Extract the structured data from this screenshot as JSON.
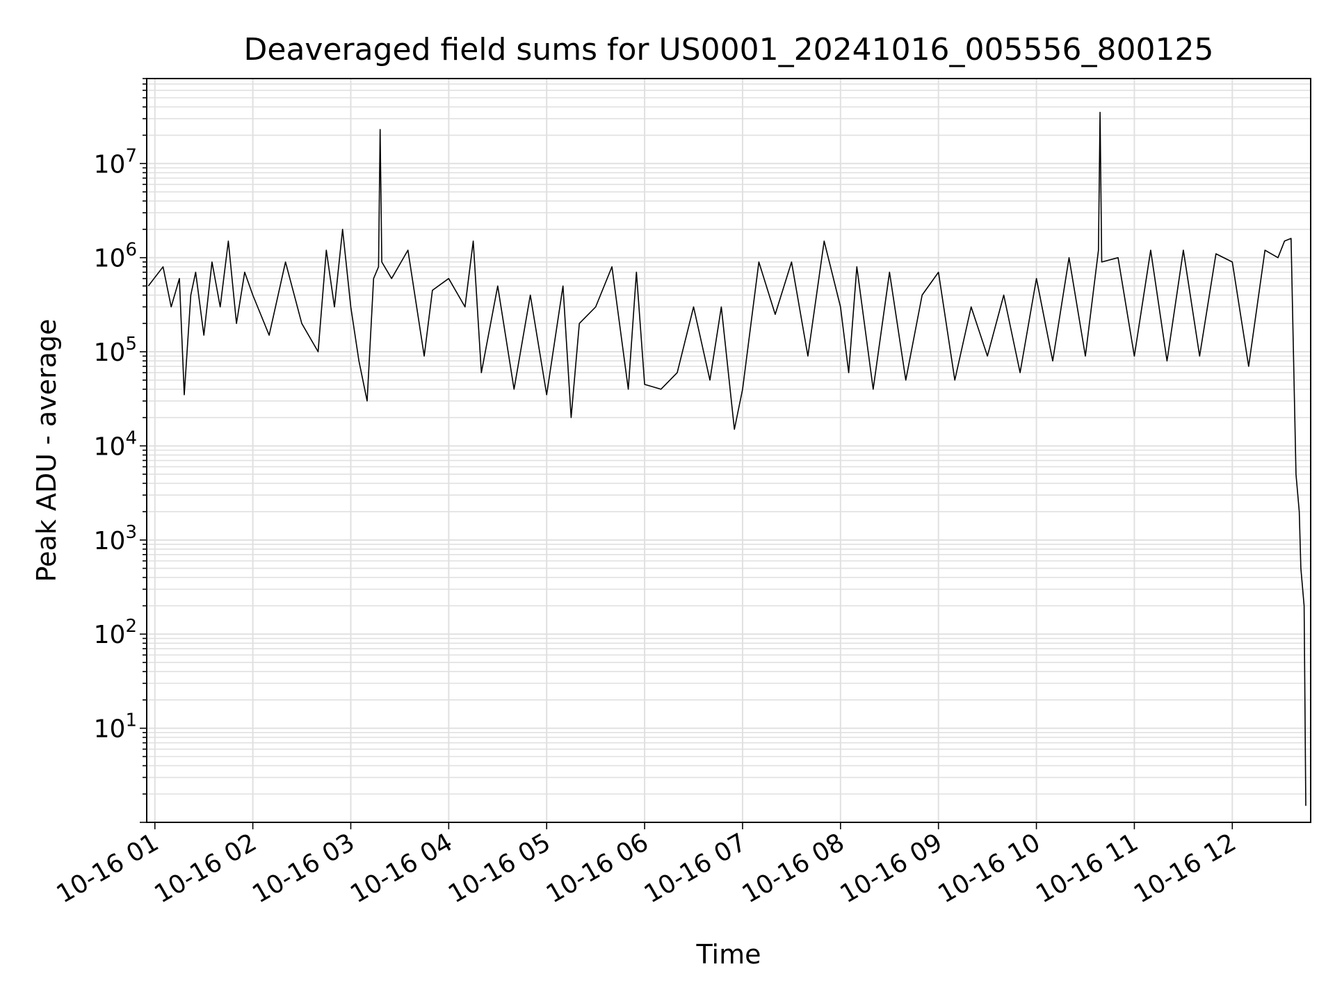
{
  "chart_data": {
    "type": "line",
    "title": "Deaveraged field sums for US0001_20241016_005556_800125",
    "xlabel": "Time",
    "ylabel": "Peak ADU - average",
    "yscale": "log",
    "ylim": [
      1.0,
      80000000
    ],
    "xlim": [
      "2024-10-16 00:55:56",
      "2024-10-16 12:48:00"
    ],
    "grid": true,
    "line_color": "#000000",
    "grid_color": "#e0e0e0",
    "x_ticks": [
      {
        "label": "10-16 01",
        "value": "2024-10-16 01:00"
      },
      {
        "label": "10-16 02",
        "value": "2024-10-16 02:00"
      },
      {
        "label": "10-16 03",
        "value": "2024-10-16 03:00"
      },
      {
        "label": "10-16 04",
        "value": "2024-10-16 04:00"
      },
      {
        "label": "10-16 05",
        "value": "2024-10-16 05:00"
      },
      {
        "label": "10-16 06",
        "value": "2024-10-16 06:00"
      },
      {
        "label": "10-16 07",
        "value": "2024-10-16 07:00"
      },
      {
        "label": "10-16 08",
        "value": "2024-10-16 08:00"
      },
      {
        "label": "10-16 09",
        "value": "2024-10-16 09:00"
      },
      {
        "label": "10-16 10",
        "value": "2024-10-16 10:00"
      },
      {
        "label": "10-16 11",
        "value": "2024-10-16 11:00"
      },
      {
        "label": "10-16 12",
        "value": "2024-10-16 12:00"
      }
    ],
    "y_ticks": [
      {
        "base": "10",
        "exp": "1",
        "value": 10
      },
      {
        "base": "10",
        "exp": "2",
        "value": 100
      },
      {
        "base": "10",
        "exp": "3",
        "value": 1000
      },
      {
        "base": "10",
        "exp": "4",
        "value": 10000
      },
      {
        "base": "10",
        "exp": "5",
        "value": 100000
      },
      {
        "base": "10",
        "exp": "6",
        "value": 1000000
      },
      {
        "base": "10",
        "exp": "7",
        "value": 10000000
      }
    ],
    "series": [
      {
        "x": [
          "2024-10-16 00:56",
          "2024-10-16 01:05",
          "2024-10-16 01:10",
          "2024-10-16 01:15",
          "2024-10-16 01:18",
          "2024-10-16 01:22",
          "2024-10-16 01:25",
          "2024-10-16 01:30",
          "2024-10-16 01:35",
          "2024-10-16 01:40",
          "2024-10-16 01:45",
          "2024-10-16 01:50",
          "2024-10-16 01:55",
          "2024-10-16 02:00",
          "2024-10-16 02:10",
          "2024-10-16 02:20",
          "2024-10-16 02:30",
          "2024-10-16 02:40",
          "2024-10-16 02:45",
          "2024-10-16 02:50",
          "2024-10-16 02:55",
          "2024-10-16 03:00",
          "2024-10-16 03:05",
          "2024-10-16 03:10",
          "2024-10-16 03:14",
          "2024-10-16 03:17",
          "2024-10-16 03:18",
          "2024-10-16 03:19",
          "2024-10-16 03:25",
          "2024-10-16 03:35",
          "2024-10-16 03:45",
          "2024-10-16 03:50",
          "2024-10-16 04:00",
          "2024-10-16 04:10",
          "2024-10-16 04:15",
          "2024-10-16 04:20",
          "2024-10-16 04:30",
          "2024-10-16 04:40",
          "2024-10-16 04:50",
          "2024-10-16 05:00",
          "2024-10-16 05:10",
          "2024-10-16 05:15",
          "2024-10-16 05:20",
          "2024-10-16 05:30",
          "2024-10-16 05:40",
          "2024-10-16 05:50",
          "2024-10-16 05:55",
          "2024-10-16 06:00",
          "2024-10-16 06:10",
          "2024-10-16 06:20",
          "2024-10-16 06:30",
          "2024-10-16 06:40",
          "2024-10-16 06:47",
          "2024-10-16 06:55",
          "2024-10-16 07:00",
          "2024-10-16 07:10",
          "2024-10-16 07:20",
          "2024-10-16 07:30",
          "2024-10-16 07:40",
          "2024-10-16 07:50",
          "2024-10-16 08:00",
          "2024-10-16 08:05",
          "2024-10-16 08:10",
          "2024-10-16 08:20",
          "2024-10-16 08:30",
          "2024-10-16 08:40",
          "2024-10-16 08:50",
          "2024-10-16 09:00",
          "2024-10-16 09:10",
          "2024-10-16 09:20",
          "2024-10-16 09:30",
          "2024-10-16 09:40",
          "2024-10-16 09:50",
          "2024-10-16 10:00",
          "2024-10-16 10:10",
          "2024-10-16 10:20",
          "2024-10-16 10:30",
          "2024-10-16 10:38",
          "2024-10-16 10:39",
          "2024-10-16 10:40",
          "2024-10-16 10:50",
          "2024-10-16 11:00",
          "2024-10-16 11:10",
          "2024-10-16 11:20",
          "2024-10-16 11:30",
          "2024-10-16 11:40",
          "2024-10-16 11:50",
          "2024-10-16 12:00",
          "2024-10-16 12:10",
          "2024-10-16 12:20",
          "2024-10-16 12:28",
          "2024-10-16 12:32",
          "2024-10-16 12:36",
          "2024-10-16 12:39",
          "2024-10-16 12:41",
          "2024-10-16 12:42",
          "2024-10-16 12:44",
          "2024-10-16 12:45"
        ],
        "y": [
          500000,
          800000,
          300000,
          600000,
          35000,
          400000,
          700000,
          150000,
          900000,
          300000,
          1500000,
          200000,
          700000,
          400000,
          150000,
          900000,
          200000,
          100000,
          1200000,
          300000,
          2000000,
          300000,
          80000,
          30000,
          600000,
          800000,
          23000000,
          900000,
          600000,
          1200000,
          90000,
          450000,
          600000,
          300000,
          1500000,
          60000,
          500000,
          40000,
          400000,
          35000,
          500000,
          20000,
          200000,
          300000,
          800000,
          40000,
          700000,
          45000,
          40000,
          60000,
          300000,
          50000,
          300000,
          15000,
          40000,
          900000,
          250000,
          900000,
          90000,
          1500000,
          300000,
          60000,
          800000,
          40000,
          700000,
          50000,
          400000,
          700000,
          50000,
          300000,
          90000,
          400000,
          60000,
          600000,
          80000,
          1000000,
          90000,
          1200000,
          35000000,
          900000,
          1000000,
          90000,
          1200000,
          80000,
          1200000,
          90000,
          1100000,
          900000,
          70000,
          1200000,
          1000000,
          1500000,
          1600000,
          5000,
          2000,
          500,
          200,
          1.5
        ]
      }
    ]
  }
}
